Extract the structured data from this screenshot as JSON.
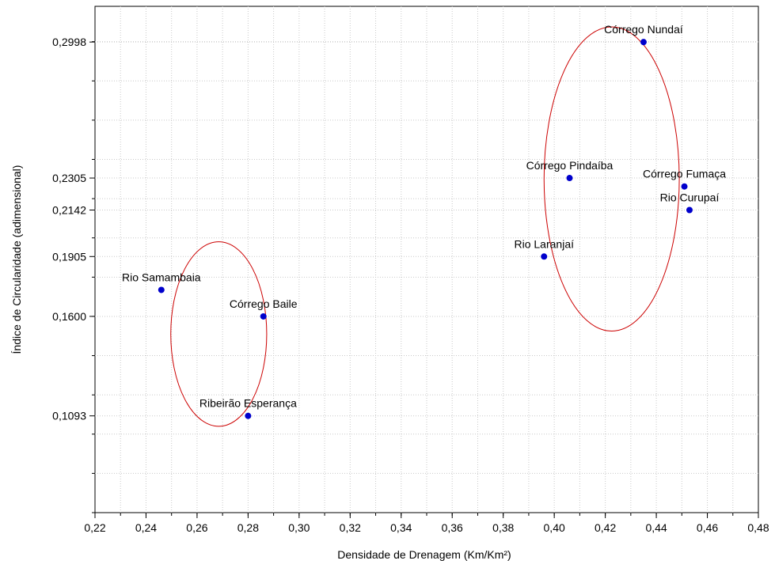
{
  "chart_data": {
    "type": "scatter",
    "title": "",
    "xlabel": "Densidade de Drenagem (Km/Km²)",
    "ylabel": "Índice de Circularidade (adimensional)",
    "xlim": [
      0.22,
      0.48
    ],
    "ylim": [
      0.06,
      0.318
    ],
    "x_ticks": [
      "0,22",
      "0,24",
      "0,26",
      "0,28",
      "0,30",
      "0,32",
      "0,34",
      "0,36",
      "0,38",
      "0,40",
      "0,42",
      "0,44",
      "0,46",
      "0,48"
    ],
    "x_tick_values": [
      0.22,
      0.24,
      0.26,
      0.28,
      0.3,
      0.32,
      0.34,
      0.36,
      0.38,
      0.4,
      0.42,
      0.44,
      0.46,
      0.48
    ],
    "y_ticks": [
      "0,1093",
      "0,1600",
      "0,1905",
      "0,2142",
      "0,2305",
      "0,2998"
    ],
    "y_tick_values": [
      0.1093,
      0.16,
      0.1905,
      0.2142,
      0.2305,
      0.2998
    ],
    "grid": true,
    "point_color": "#0000cc",
    "cluster_color": "#cc0000",
    "points": [
      {
        "label": "Córrego Nundaí",
        "x": 0.435,
        "y": 0.2998
      },
      {
        "label": "Córrego Pindaíba",
        "x": 0.406,
        "y": 0.2305
      },
      {
        "label": "Córrego Fumaça",
        "x": 0.451,
        "y": 0.2262
      },
      {
        "label": "Rio Curupaí",
        "x": 0.453,
        "y": 0.2142
      },
      {
        "label": "Rio Laranjaí",
        "x": 0.396,
        "y": 0.1905
      },
      {
        "label": "Rio Samambaia",
        "x": 0.246,
        "y": 0.1735
      },
      {
        "label": "Córrego Baile",
        "x": 0.286,
        "y": 0.16
      },
      {
        "label": "Ribeirão Esperança",
        "x": 0.28,
        "y": 0.1093
      }
    ],
    "clusters": [
      {
        "cx": 0.4225,
        "cy": 0.23,
        "rx": 0.0265,
        "ry": 0.0775
      },
      {
        "cx": 0.2685,
        "cy": 0.151,
        "rx": 0.0188,
        "ry": 0.047
      }
    ]
  }
}
